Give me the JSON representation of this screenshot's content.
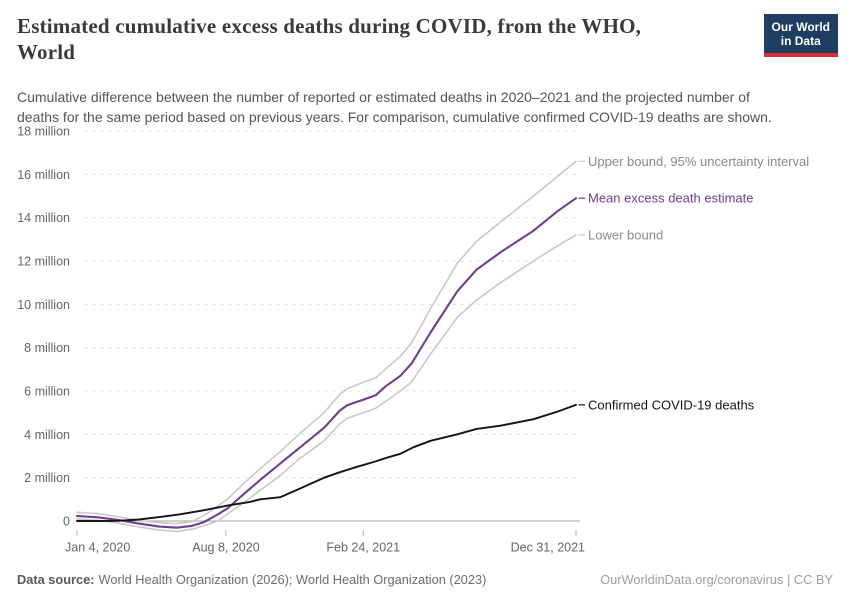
{
  "header": {
    "title": "Estimated cumulative excess deaths during COVID, from the WHO,\nWorld",
    "subtitle": "Cumulative difference between the number of reported or estimated deaths in 2020–2021 and the projected number of\ndeaths for the same period based on previous years. For comparison, cumulative confirmed COVID-19 deaths are shown.",
    "logo": {
      "line1": "Our World",
      "line2": "in Data"
    }
  },
  "footer": {
    "data_source_label": "Data source:",
    "data_source_value": "World Health Organization (2026); World Health Organization (2023)",
    "credit": "OurWorldinData.org/coronavirus | CC BY"
  },
  "colors": {
    "logo_bg": "#1d3d63",
    "logo_red": "#dc2c34",
    "axis_text": "#666666",
    "gridline": "#e0e0e0",
    "zero_line": "#a3a3a3",
    "tick_mark": "#b3b3b3",
    "purple": "#6d3e91",
    "bound_gray": "#c9c9c9",
    "bound_label_gray": "#8a8a8a",
    "black": "#141414"
  },
  "chart_data": {
    "type": "line",
    "title": "Estimated cumulative excess deaths during COVID, from the WHO, World",
    "xlabel": "",
    "ylabel": "",
    "y_unit": "million deaths",
    "ylim": [
      -0.6,
      18
    ],
    "grid": "dashed horizontal",
    "legend_position": "right edge line labels",
    "y_axis": {
      "ticks": [
        {
          "value": 18,
          "label": "18 million"
        },
        {
          "value": 16,
          "label": "16 million"
        },
        {
          "value": 14,
          "label": "14 million"
        },
        {
          "value": 12,
          "label": "12 million"
        },
        {
          "value": 10,
          "label": "10 million"
        },
        {
          "value": 8,
          "label": "8 million"
        },
        {
          "value": 6,
          "label": "6 million"
        },
        {
          "value": 4,
          "label": "4 million"
        },
        {
          "value": 2,
          "label": "2 million"
        },
        {
          "value": 0,
          "label": "0"
        }
      ]
    },
    "x_axis": {
      "unit": "days since Jan 4, 2020",
      "range_days": [
        0,
        727
      ],
      "ticks": [
        {
          "day": 0,
          "label": "Jan 4, 2020",
          "anchor": "start"
        },
        {
          "day": 217,
          "label": "Aug 8, 2020",
          "anchor": "middle"
        },
        {
          "day": 417,
          "label": "Feb 24, 2021",
          "anchor": "middle"
        },
        {
          "day": 727,
          "label": "Dec 31, 2021",
          "anchor": "end"
        }
      ]
    },
    "series": [
      {
        "id": "upper",
        "name": "Upper bound, 95% uncertainty interval",
        "color": "#c9c9c9",
        "label_color": "#8a8a8a",
        "points": [
          [
            0,
            0.4
          ],
          [
            30,
            0.34
          ],
          [
            60,
            0.2
          ],
          [
            90,
            0.02
          ],
          [
            120,
            -0.08
          ],
          [
            145,
            -0.12
          ],
          [
            168,
            -0.02
          ],
          [
            190,
            0.35
          ],
          [
            220,
            1.03
          ],
          [
            245,
            1.8
          ],
          [
            267,
            2.42
          ],
          [
            296,
            3.2
          ],
          [
            325,
            4.05
          ],
          [
            360,
            5.0
          ],
          [
            383,
            5.85
          ],
          [
            394,
            6.1
          ],
          [
            417,
            6.4
          ],
          [
            435,
            6.6
          ],
          [
            449,
            7.0
          ],
          [
            471,
            7.6
          ],
          [
            487,
            8.2
          ],
          [
            515,
            9.8
          ],
          [
            554,
            11.9
          ],
          [
            582,
            12.9
          ],
          [
            617,
            13.8
          ],
          [
            665,
            15.0
          ],
          [
            700,
            15.9
          ],
          [
            727,
            16.6
          ]
        ]
      },
      {
        "id": "mean",
        "name": "Mean excess death estimate",
        "color": "#6d3e91",
        "label_color": "#6d3e91",
        "points": [
          [
            0,
            0.23
          ],
          [
            30,
            0.17
          ],
          [
            60,
            0.05
          ],
          [
            90,
            -0.12
          ],
          [
            120,
            -0.26
          ],
          [
            145,
            -0.31
          ],
          [
            168,
            -0.22
          ],
          [
            185,
            -0.05
          ],
          [
            205,
            0.3
          ],
          [
            220,
            0.6
          ],
          [
            245,
            1.3
          ],
          [
            267,
            1.9
          ],
          [
            296,
            2.65
          ],
          [
            325,
            3.4
          ],
          [
            360,
            4.3
          ],
          [
            383,
            5.1
          ],
          [
            394,
            5.35
          ],
          [
            417,
            5.6
          ],
          [
            435,
            5.8
          ],
          [
            449,
            6.2
          ],
          [
            471,
            6.7
          ],
          [
            487,
            7.25
          ],
          [
            515,
            8.7
          ],
          [
            554,
            10.6
          ],
          [
            582,
            11.6
          ],
          [
            617,
            12.4
          ],
          [
            665,
            13.4
          ],
          [
            700,
            14.3
          ],
          [
            727,
            14.9
          ]
        ]
      },
      {
        "id": "lower",
        "name": "Lower bound",
        "color": "#c9c9c9",
        "label_color": "#8a8a8a",
        "points": [
          [
            0,
            0.1
          ],
          [
            30,
            0.03
          ],
          [
            60,
            -0.1
          ],
          [
            90,
            -0.27
          ],
          [
            120,
            -0.42
          ],
          [
            145,
            -0.48
          ],
          [
            168,
            -0.38
          ],
          [
            185,
            -0.22
          ],
          [
            205,
            0.0
          ],
          [
            220,
            0.34
          ],
          [
            245,
            0.9
          ],
          [
            267,
            1.42
          ],
          [
            296,
            2.1
          ],
          [
            325,
            2.9
          ],
          [
            360,
            3.7
          ],
          [
            383,
            4.5
          ],
          [
            394,
            4.75
          ],
          [
            417,
            5.0
          ],
          [
            435,
            5.2
          ],
          [
            449,
            5.5
          ],
          [
            471,
            6.0
          ],
          [
            487,
            6.4
          ],
          [
            515,
            7.7
          ],
          [
            554,
            9.4
          ],
          [
            582,
            10.2
          ],
          [
            617,
            11.0
          ],
          [
            665,
            12.0
          ],
          [
            700,
            12.7
          ],
          [
            727,
            13.2
          ]
        ]
      },
      {
        "id": "confirmed",
        "name": "Confirmed COVID-19 deaths",
        "color": "#141414",
        "label_color": "#141414",
        "points": [
          [
            0,
            0.0
          ],
          [
            30,
            0.0
          ],
          [
            60,
            0.01
          ],
          [
            90,
            0.07
          ],
          [
            120,
            0.18
          ],
          [
            150,
            0.31
          ],
          [
            180,
            0.47
          ],
          [
            205,
            0.62
          ],
          [
            220,
            0.72
          ],
          [
            252,
            0.88
          ],
          [
            267,
            1.0
          ],
          [
            296,
            1.1
          ],
          [
            325,
            1.5
          ],
          [
            344,
            1.77
          ],
          [
            360,
            2.0
          ],
          [
            383,
            2.25
          ],
          [
            408,
            2.5
          ],
          [
            435,
            2.75
          ],
          [
            449,
            2.9
          ],
          [
            471,
            3.1
          ],
          [
            490,
            3.4
          ],
          [
            515,
            3.7
          ],
          [
            554,
            4.0
          ],
          [
            582,
            4.25
          ],
          [
            617,
            4.4
          ],
          [
            665,
            4.7
          ],
          [
            700,
            5.05
          ],
          [
            727,
            5.36
          ]
        ]
      }
    ]
  }
}
